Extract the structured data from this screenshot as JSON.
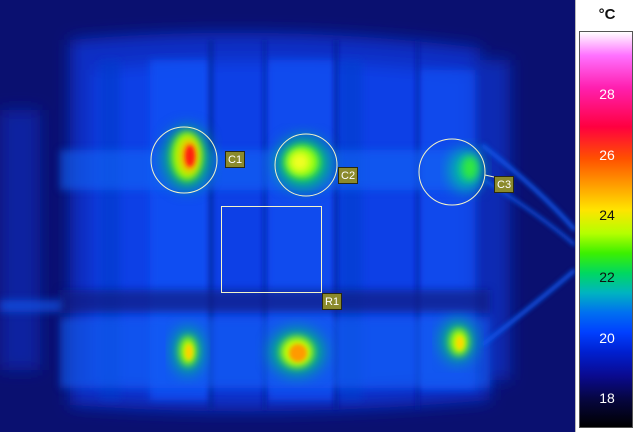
{
  "legend": {
    "unit": "°C",
    "ticks": [
      {
        "value": 28,
        "label": "28",
        "color": "#ffffff"
      },
      {
        "value": 26,
        "label": "26",
        "color": "#ffffff"
      },
      {
        "value": 24,
        "label": "24",
        "color": "#111111"
      },
      {
        "value": 22,
        "label": "22",
        "color": "#111111"
      },
      {
        "value": 20,
        "label": "20",
        "color": "#ffffff"
      },
      {
        "value": 18,
        "label": "18",
        "color": "#ffffff"
      }
    ]
  },
  "markers": {
    "c1": "C1",
    "c2": "C2",
    "c3": "C3",
    "r1": "R1"
  },
  "colors": {
    "background": "#0a1070",
    "marker_outline": "#f4f4c8",
    "label_fill": "#8b8a2c"
  }
}
